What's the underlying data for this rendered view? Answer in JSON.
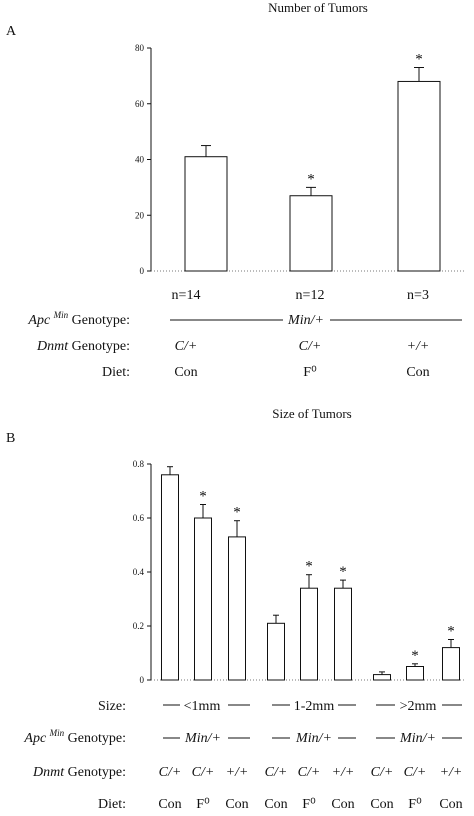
{
  "panel_a": {
    "letter": "A",
    "n_labels": [
      "n=14",
      "n=12",
      "n=3"
    ],
    "apc_label_main": "Apc",
    "apc_label_sup": "Min",
    "apc_label_rest": " Genotype:",
    "apc_value": "Min/+",
    "dnmt_label_it": "Dnmt",
    "dnmt_label_rest": " Genotype:",
    "dnmt_values": [
      "C/+",
      "C/+",
      "+/+"
    ],
    "diet_label": "Diet:",
    "diet_values": [
      "Con",
      "F⁰",
      "Con"
    ]
  },
  "panel_b": {
    "letter": "B",
    "size_label": "Size:",
    "size_groups": [
      "<1mm",
      "1-2mm",
      ">2mm"
    ],
    "apc_label_main": "Apc",
    "apc_label_sup": "Min",
    "apc_label_rest": " Genotype:",
    "apc_values": [
      "Min/+",
      "Min/+",
      "Min/+"
    ],
    "dnmt_label_it": "Dnmt",
    "dnmt_label_rest": " Genotype:",
    "dnmt_values": [
      "C/+",
      "C/+",
      "+/+",
      "C/+",
      "C/+",
      "+/+",
      "C/+",
      "C/+",
      "+/+"
    ],
    "diet_label": "Diet:",
    "diet_values": [
      "Con",
      "F⁰",
      "Con",
      "Con",
      "F⁰",
      "Con",
      "Con",
      "F⁰",
      "Con"
    ]
  },
  "chart_data": [
    {
      "type": "bar",
      "title": "Number of Tumors",
      "xlabel": "",
      "ylabel": "",
      "ylim": [
        0,
        80
      ],
      "yticks": [
        0,
        20,
        40,
        60,
        80
      ],
      "categories": [
        "n=14",
        "n=12",
        "n=3"
      ],
      "values": [
        41,
        27,
        68
      ],
      "errors": [
        4,
        3,
        5
      ],
      "significant": [
        false,
        true,
        true
      ],
      "annotation_mark": "*"
    },
    {
      "type": "bar",
      "title": "Size of Tumors",
      "xlabel": "",
      "ylabel": "",
      "ylim": [
        0,
        0.8
      ],
      "yticks": [
        "0",
        "0.2",
        "0.4",
        "0.6",
        "0.8"
      ],
      "groups": [
        "<1mm",
        "1-2mm",
        ">2mm"
      ],
      "values": [
        0.76,
        0.6,
        0.53,
        0.21,
        0.34,
        0.34,
        0.02,
        0.05,
        0.12
      ],
      "errors": [
        0.03,
        0.05,
        0.06,
        0.03,
        0.05,
        0.03,
        0.01,
        0.01,
        0.03
      ],
      "significant": [
        false,
        true,
        true,
        false,
        true,
        true,
        false,
        true,
        true
      ],
      "annotation_mark": "*"
    }
  ]
}
